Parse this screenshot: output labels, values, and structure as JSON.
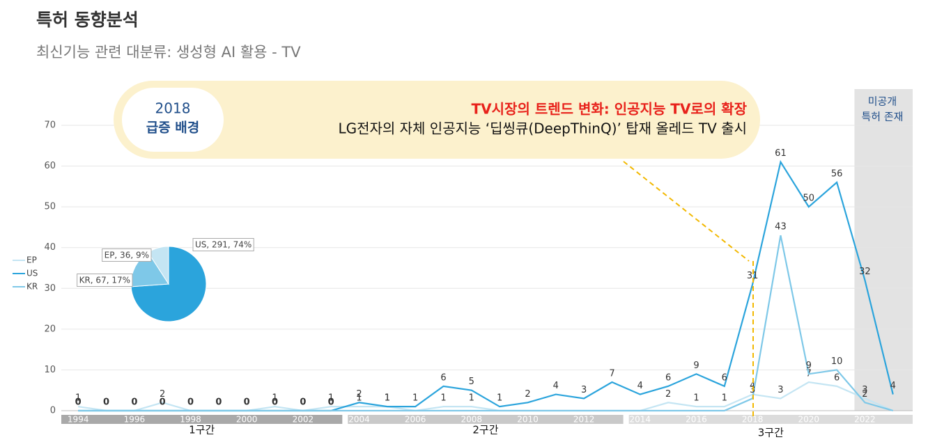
{
  "header": {
    "title": "특허 동향분석",
    "subtitle": "최신기능 관련 대분류: 생성형 AI 활용 - TV"
  },
  "callout": {
    "badge": [
      "2018",
      "급증 배경"
    ],
    "headline": "TV시장의 트렌드 변화: 인공지능 TV로의 확장",
    "text": "LG전자의 자체 인공지능 ‘딥씽큐(DeepThinQ)’ 탑재 올레드 TV 출시"
  },
  "chart_data": [
    {
      "type": "line",
      "x": [
        1994,
        1995,
        1996,
        1997,
        1998,
        1999,
        2000,
        2001,
        2002,
        2003,
        2004,
        2005,
        2006,
        2007,
        2008,
        2009,
        2010,
        2011,
        2012,
        2013,
        2014,
        2015,
        2016,
        2017,
        2018,
        2019,
        2020,
        2021,
        2022,
        2023
      ],
      "series": [
        {
          "name": "EP",
          "color": "#c4e5f3",
          "values": [
            1,
            0,
            0,
            2,
            0,
            0,
            0,
            1,
            0,
            1,
            1,
            1,
            0,
            1,
            1,
            0,
            0,
            0,
            0,
            0,
            0,
            2,
            1,
            1,
            4,
            3,
            7,
            6,
            3,
            0
          ]
        },
        {
          "name": "US",
          "color": "#2ba4dc",
          "values": [
            0,
            0,
            0,
            0,
            0,
            0,
            0,
            0,
            0,
            0,
            2,
            1,
            1,
            6,
            5,
            1,
            2,
            4,
            3,
            7,
            4,
            6,
            9,
            6,
            31,
            61,
            50,
            56,
            32,
            4
          ]
        },
        {
          "name": "KR",
          "color": "#7ec8e8",
          "values": [
            0,
            0,
            0,
            0,
            0,
            0,
            0,
            0,
            0,
            0,
            0,
            0,
            0,
            0,
            0,
            0,
            0,
            0,
            0,
            0,
            0,
            0,
            0,
            0,
            3,
            43,
            9,
            10,
            2,
            0
          ]
        }
      ],
      "xlim": [
        1993.4,
        2023.7
      ],
      "xticks": [
        1994,
        1996,
        1998,
        2000,
        2002,
        2004,
        2006,
        2008,
        2010,
        2012,
        2014,
        2016,
        2018,
        2020,
        2022
      ],
      "ylim": [
        0,
        70
      ],
      "yticks": [
        0,
        10,
        20,
        30,
        40,
        50,
        60,
        70
      ],
      "grid": true,
      "periods": [
        {
          "label": "1구간",
          "range": [
            1994,
            2003
          ],
          "color": "#a9a9a9"
        },
        {
          "label": "2구간",
          "range": [
            2004,
            2013
          ],
          "color": "#c9c9c9"
        },
        {
          "label": "3구간",
          "range": [
            2014,
            2023
          ],
          "color": "#dcdcdc"
        }
      ],
      "unpublished": {
        "label": [
          "미공개",
          "특허 존재"
        ],
        "range": [
          2022,
          2023
        ]
      }
    },
    {
      "type": "pie",
      "categories": [
        "US",
        "KR",
        "EP"
      ],
      "values": [
        291,
        67,
        36
      ],
      "value_labels": [
        "US, 291, 74%",
        "KR, 67, 17%",
        "EP, 36, 9%"
      ],
      "colors": [
        "#2ba4dc",
        "#7ec8e8",
        "#c4e5f3"
      ]
    }
  ]
}
